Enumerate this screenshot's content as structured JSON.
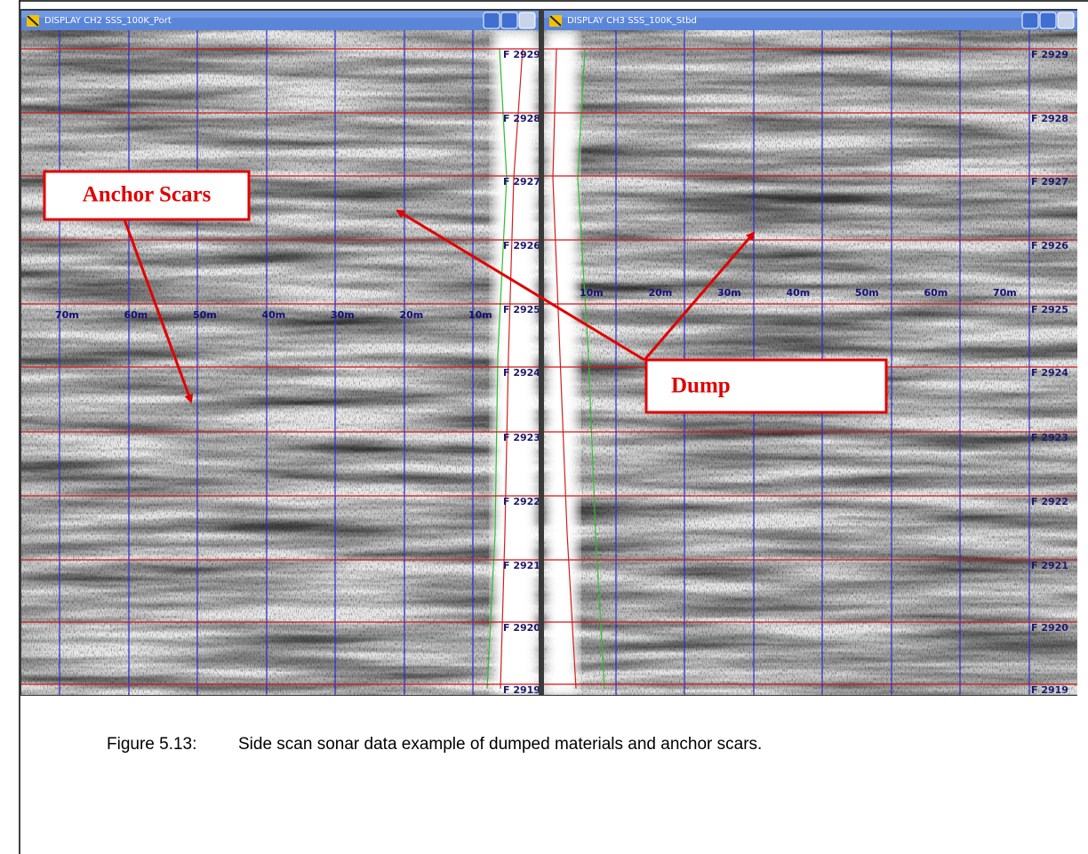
{
  "left_window": {
    "title": "DISPLAY CH2 SSS_100K_Port",
    "frame_labels": [
      "F 2929",
      "F 2928",
      "F 2927",
      "F 2926",
      "F 2925",
      "F 2924",
      "F 2923",
      "F 2922",
      "F 2921",
      "F 2920",
      "F 2919"
    ],
    "range_labels": [
      "70m",
      "60m",
      "50m",
      "40m",
      "30m",
      "20m",
      "10m"
    ]
  },
  "right_window": {
    "title": "DISPLAY CH3 SSS_100K_Stbd",
    "frame_labels": [
      "F 2929",
      "F 2928",
      "F 2927",
      "F 2926",
      "F 2925",
      "F 2924",
      "F 2923",
      "F 2922",
      "F 2921",
      "F 2920",
      "F 2919"
    ],
    "range_labels": [
      "10m",
      "20m",
      "30m",
      "40m",
      "50m",
      "60m",
      "70m"
    ]
  },
  "annotations": {
    "anchor_scars": "Anchor Scars",
    "dump": "Dump"
  },
  "caption": {
    "number": "Figure 5.13:",
    "text": "Side scan sonar data example of dumped materials and anchor scars."
  }
}
